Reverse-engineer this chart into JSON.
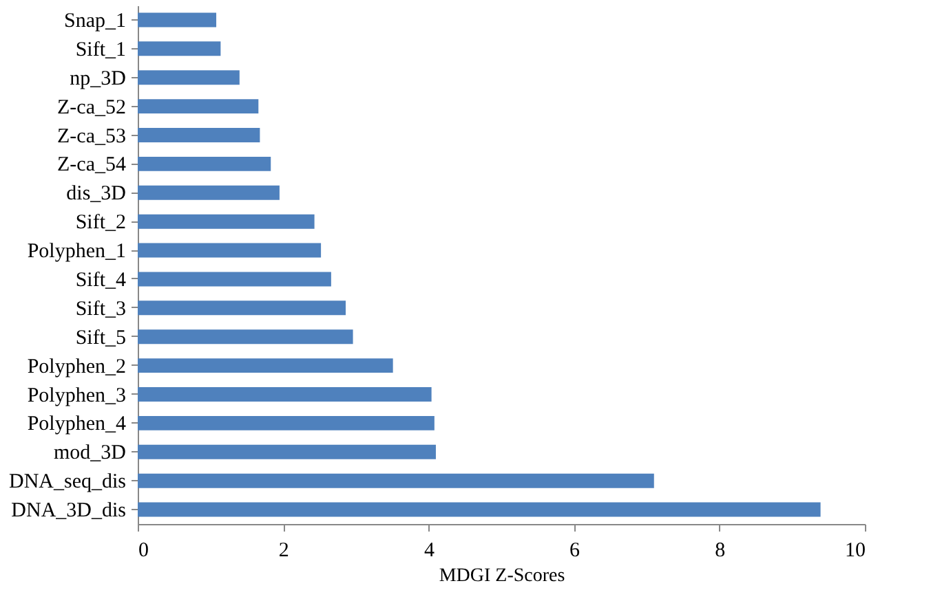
{
  "chart_data": {
    "type": "bar",
    "orientation": "horizontal",
    "xlabel": "MDGI Z-Scores",
    "categories": [
      "Snap_1",
      "Sift_1",
      "np_3D",
      "Z-ca_52",
      "Z-ca_53",
      "Z-ca_54",
      "dis_3D",
      "Sift_2",
      "Polyphen_1",
      "Sift_4",
      "Sift_3",
      "Sift_5",
      "Polyphen_2",
      "Polyphen_3",
      "Polyphen_4",
      "mod_3D",
      "DNA_seq_dis",
      "DNA_3D_dis"
    ],
    "values": [
      1.08,
      1.14,
      1.4,
      1.66,
      1.68,
      1.83,
      1.95,
      2.43,
      2.52,
      2.66,
      2.86,
      2.96,
      3.51,
      4.04,
      4.08,
      4.1,
      7.1,
      9.39
    ],
    "color": "#4f81bd",
    "xlim": [
      0,
      10
    ],
    "xticks": [
      0,
      2,
      4,
      6,
      8,
      10
    ],
    "grid": false
  }
}
